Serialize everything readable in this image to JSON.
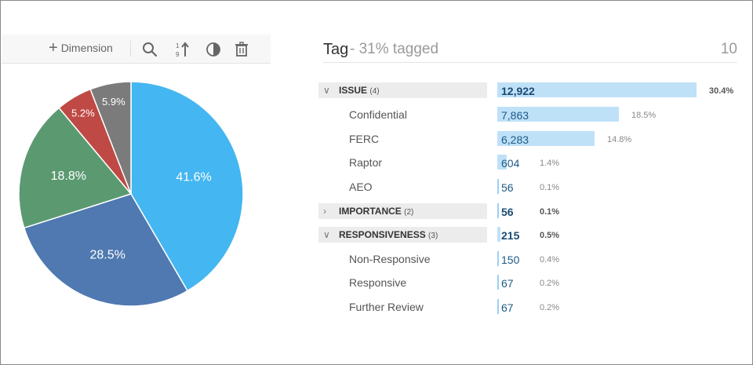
{
  "toolbar": {
    "dimension_label": "Dimension",
    "icons": [
      "search-icon",
      "sort-icon",
      "pie-chart-icon",
      "trash-icon"
    ]
  },
  "chart_data": {
    "type": "pie",
    "slices": [
      {
        "label": "41.6%",
        "value": 41.6,
        "color": "#44b6f1"
      },
      {
        "label": "28.5%",
        "value": 28.5,
        "color": "#4f79b0"
      },
      {
        "label": "18.8%",
        "value": 18.8,
        "color": "#5b9a71"
      },
      {
        "label": "5.2%",
        "value": 5.2,
        "color": "#bf4a45"
      },
      {
        "label": "5.9%",
        "value": 5.9,
        "color": "#7b7b7b"
      }
    ]
  },
  "header": {
    "title": "Tag",
    "subtitle": "- 31% tagged",
    "count": "10"
  },
  "rows": [
    {
      "kind": "group",
      "label": "ISSUE",
      "count": "(4)",
      "expanded": true,
      "value": "12,922",
      "pct": "30.4%",
      "fraction": 0.304
    },
    {
      "kind": "child",
      "label": "Confidential",
      "value": "7,863",
      "pct": "18.5%",
      "fraction": 0.185
    },
    {
      "kind": "child",
      "label": "FERC",
      "value": "6,283",
      "pct": "14.8%",
      "fraction": 0.148
    },
    {
      "kind": "child",
      "label": "Raptor",
      "value": "604",
      "pct": "1.4%",
      "fraction": 0.014
    },
    {
      "kind": "child",
      "label": "AEO",
      "value": "56",
      "pct": "0.1%",
      "fraction": 0.001
    },
    {
      "kind": "group",
      "label": "IMPORTANCE",
      "count": "(2)",
      "expanded": false,
      "value": "56",
      "pct": "0.1%",
      "fraction": 0.001
    },
    {
      "kind": "group",
      "label": "RESPONSIVENESS",
      "count": "(3)",
      "expanded": true,
      "value": "215",
      "pct": "0.5%",
      "fraction": 0.005
    },
    {
      "kind": "child",
      "label": "Non-Responsive",
      "value": "150",
      "pct": "0.4%",
      "fraction": 0.004
    },
    {
      "kind": "child",
      "label": "Responsive",
      "value": "67",
      "pct": "0.2%",
      "fraction": 0.002
    },
    {
      "kind": "child",
      "label": "Further Review",
      "value": "67",
      "pct": "0.2%",
      "fraction": 0.002
    }
  ]
}
